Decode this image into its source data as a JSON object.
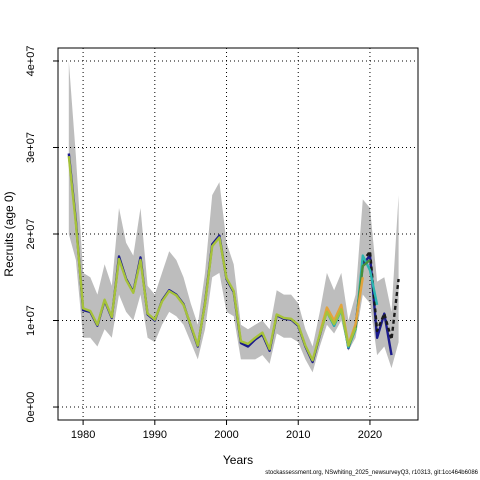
{
  "footer_text": "stockassessment.org, NSwhiting_2025_newsurveyQ3, r10313, git:1cc464b6086",
  "chart_data": {
    "type": "line",
    "title": "",
    "xlabel": "Years",
    "ylabel": "Recruits (age 0)",
    "xlim": [
      1976.5,
      2026.7
    ],
    "ylim": [
      -1500000,
      41500000
    ],
    "xticks": [
      1980,
      1990,
      2000,
      2010,
      2020
    ],
    "xtick_labels": [
      "1980",
      "1990",
      "2000",
      "2010",
      "2020"
    ],
    "yticks": [
      0,
      10000000,
      20000000,
      30000000,
      40000000
    ],
    "ytick_labels": [
      "0e+00",
      "1e+07",
      "2e+07",
      "3e+07",
      "4e+07"
    ],
    "grid": true,
    "grid_style": "dotted",
    "band": {
      "color": "#bdbdbd",
      "x": [
        1978,
        1979,
        1980,
        1981,
        1982,
        1983,
        1984,
        1985,
        1986,
        1987,
        1988,
        1989,
        1990,
        1991,
        1992,
        1993,
        1994,
        1995,
        1996,
        1997,
        1998,
        1999,
        2000,
        2001,
        2002,
        2003,
        2004,
        2005,
        2006,
        2007,
        2008,
        2009,
        2010,
        2011,
        2012,
        2013,
        2014,
        2015,
        2016,
        2017,
        2018,
        2019,
        2020,
        2021,
        2022,
        2023,
        2024
      ],
      "upper": [
        40000000,
        29000000,
        15500000,
        15000000,
        13000000,
        16500000,
        14000000,
        23000000,
        19000000,
        17500000,
        23000000,
        14000000,
        13000000,
        15500000,
        18000000,
        17000000,
        15000000,
        12000000,
        9500000,
        15500000,
        24500000,
        26000000,
        19000000,
        16500000,
        9500000,
        9000000,
        9500000,
        10000000,
        9000000,
        13500000,
        13000000,
        13000000,
        12000000,
        9000000,
        7000000,
        11000000,
        15500000,
        13500000,
        15500000,
        10000000,
        13000000,
        24000000,
        23000000,
        14500000,
        15000000,
        11000000,
        24500000
      ],
      "lower": [
        20000000,
        17000000,
        8000000,
        8000000,
        7000000,
        9000000,
        8000000,
        13000000,
        11000000,
        10000000,
        13000000,
        8000000,
        7500000,
        9500000,
        11000000,
        10500000,
        9500000,
        7500000,
        5500000,
        9000000,
        15000000,
        15500000,
        11000000,
        10500000,
        5500000,
        5500000,
        5500000,
        6000000,
        5000000,
        8500000,
        8000000,
        8000000,
        7500000,
        5500000,
        4000000,
        7000000,
        9500000,
        8500000,
        10000000,
        6500000,
        8000000,
        13000000,
        12000000,
        6000000,
        7000000,
        4500000,
        7500000
      ]
    },
    "series": [
      {
        "color": "#1a1a8c",
        "dash": "solid",
        "x": [
          1978,
          1979,
          1980,
          1981,
          1982,
          1983,
          1984,
          1985,
          1986,
          1987,
          1988,
          1989,
          1990,
          1991,
          1992,
          1993,
          1994,
          1995,
          1996,
          1997,
          1998,
          1999,
          2000,
          2001,
          2002,
          2003,
          2004,
          2005,
          2006,
          2007,
          2008,
          2009,
          2010,
          2011,
          2012,
          2013,
          2014,
          2015,
          2016,
          2017,
          2018,
          2019,
          2020,
          2021,
          2022,
          2023
        ],
        "y": [
          29300000,
          21500000,
          11200000,
          11000000,
          9400000,
          12300000,
          10300000,
          17400000,
          14800000,
          13300000,
          17300000,
          10700000,
          10000000,
          12300000,
          13500000,
          13000000,
          11900000,
          9400000,
          7000000,
          12000000,
          18800000,
          19800000,
          14800000,
          13300000,
          7400000,
          7000000,
          7800000,
          8400000,
          6500000,
          10600000,
          10200000,
          10100000,
          9400000,
          7000000,
          5200000,
          8300000,
          11200000,
          9400000,
          11500000,
          6800000,
          9400000,
          16500000,
          17500000,
          8000000,
          10800000,
          6000000
        ]
      },
      {
        "color": "#1a1a1a",
        "dash": "4,3",
        "x": [
          2019,
          2020,
          2021,
          2022,
          2023,
          2024
        ],
        "y": [
          16800000,
          18000000,
          8800000,
          10800000,
          7800000,
          14800000
        ]
      },
      {
        "color": "#2bb5b0",
        "dash": "solid",
        "x": [
          2014,
          2015,
          2016,
          2017,
          2018,
          2019,
          2020,
          2021
        ],
        "y": [
          11000000,
          9400000,
          11200000,
          6900000,
          9000000,
          17500000,
          15800000,
          11800000
        ]
      },
      {
        "color": "#4a8f3a",
        "dash": "solid",
        "x": [
          2017,
          2018,
          2019,
          2020
        ],
        "y": [
          7000000,
          9200000,
          16300000,
          17000000
        ]
      },
      {
        "color": "#e3a33c",
        "dash": "solid",
        "x": [
          2013,
          2014,
          2015,
          2016,
          2017,
          2018,
          2019
        ],
        "y": [
          8500000,
          11500000,
          10000000,
          11800000,
          7200000,
          9600000,
          15000000
        ]
      },
      {
        "color": "#a6c23a",
        "dash": "solid",
        "x": [
          1978,
          1979,
          1980,
          1981,
          1982,
          1983,
          1984,
          1985,
          1986,
          1987,
          1988,
          1989,
          1990,
          1991,
          1992,
          1993,
          1994,
          1995,
          1996,
          1997,
          1998,
          1999,
          2000,
          2001,
          2002,
          2003,
          2004,
          2005,
          2006,
          2007,
          2008,
          2009,
          2010,
          2011,
          2012,
          2013,
          2014,
          2015,
          2016,
          2017,
          2018
        ],
        "y": [
          29000000,
          21200000,
          11400000,
          11100000,
          9500000,
          12400000,
          10400000,
          17100000,
          14700000,
          13200000,
          17000000,
          10800000,
          10100000,
          12200000,
          13400000,
          12900000,
          11800000,
          9500000,
          7100000,
          11900000,
          18600000,
          19600000,
          14900000,
          13400000,
          7600000,
          7300000,
          8000000,
          8600000,
          6700000,
          10700000,
          10300000,
          10200000,
          9500000,
          7100000,
          5400000,
          8400000,
          11000000,
          9600000,
          11300000,
          7100000,
          9200000
        ]
      }
    ]
  }
}
